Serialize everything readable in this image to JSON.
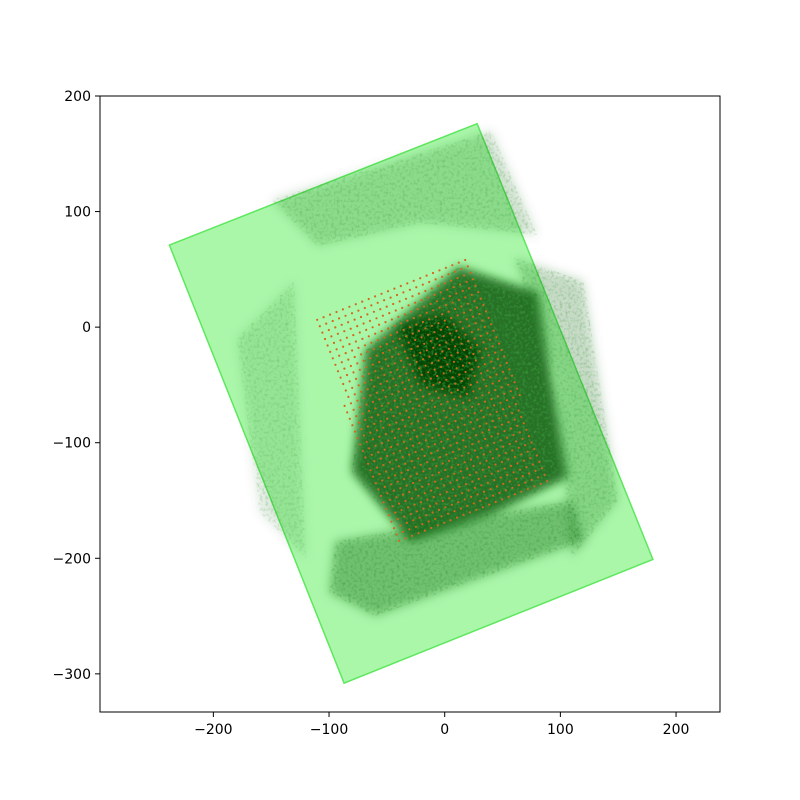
{
  "chart_data": {
    "type": "scatter",
    "title": "",
    "xlabel": "",
    "ylabel": "",
    "xlim": [
      -298,
      238
    ],
    "ylim": [
      -333,
      200
    ],
    "grid": false,
    "xticks": [
      -200,
      -100,
      0,
      100,
      200
    ],
    "yticks": [
      200,
      100,
      0,
      -100,
      -200,
      -300
    ],
    "xtick_labels": [
      "−200",
      "−100",
      "0",
      "100",
      "200"
    ],
    "ytick_labels": [
      "200",
      "100",
      "0",
      "−100",
      "−200",
      "−300"
    ],
    "colors": {
      "footprint_fill": "#aaf7aa",
      "footprint_edge": "#5ee85e",
      "density": "#0b5a0b",
      "density_dark": "#064406",
      "sample_points": "#d2691e"
    },
    "footprint_polygon": [
      [
        -238,
        71
      ],
      [
        28,
        176
      ],
      [
        180,
        -201
      ],
      [
        -87,
        -308
      ]
    ],
    "density_regions": [
      {
        "polygon": [
          [
            -68,
            -20
          ],
          [
            12,
            52
          ],
          [
            80,
            30
          ],
          [
            106,
            -130
          ],
          [
            40,
            -162
          ],
          [
            -30,
            -185
          ],
          [
            -80,
            -125
          ]
        ],
        "opacity": 0.85
      },
      {
        "polygon": [
          [
            -40,
            0
          ],
          [
            0,
            10
          ],
          [
            30,
            -20
          ],
          [
            20,
            -60
          ],
          [
            -20,
            -50
          ]
        ],
        "opacity": 1.0
      },
      {
        "polygon": [
          [
            -150,
            110
          ],
          [
            40,
            170
          ],
          [
            80,
            80
          ],
          [
            -20,
            90
          ],
          [
            -110,
            70
          ]
        ],
        "opacity": 0.18
      },
      {
        "polygon": [
          [
            -95,
            -185
          ],
          [
            110,
            -150
          ],
          [
            120,
            -185
          ],
          [
            -60,
            -250
          ],
          [
            -100,
            -230
          ]
        ],
        "opacity": 0.35
      },
      {
        "polygon": [
          [
            -180,
            -10
          ],
          [
            -130,
            40
          ],
          [
            -120,
            -200
          ],
          [
            -160,
            -160
          ]
        ],
        "opacity": 0.12
      },
      {
        "polygon": [
          [
            60,
            60
          ],
          [
            120,
            40
          ],
          [
            150,
            -150
          ],
          [
            110,
            -200
          ],
          [
            95,
            -40
          ]
        ],
        "opacity": 0.22
      }
    ],
    "sample_grid": {
      "polygon": [
        [
          -112,
          10
        ],
        [
          20,
          63
        ],
        [
          92,
          -132
        ],
        [
          -40,
          -186
        ],
        [
          -70,
          -120
        ]
      ],
      "spacing": 6
    }
  }
}
